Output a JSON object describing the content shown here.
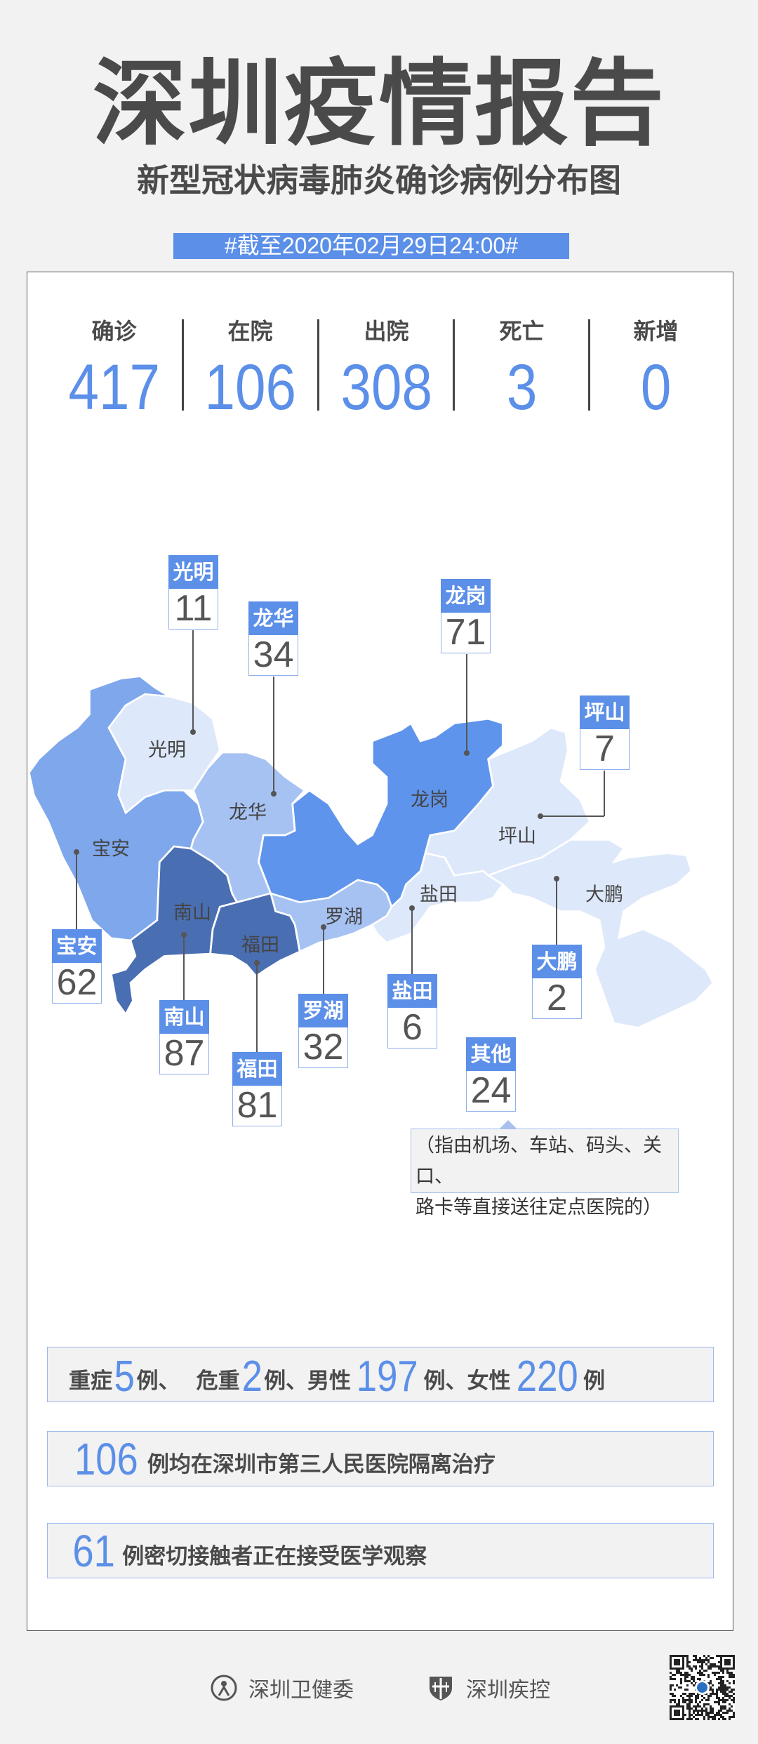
{
  "header": {
    "title": "深圳疫情报告",
    "subtitle": "新型冠状病毒肺炎确诊病例分布图",
    "date_banner": "#截至2020年02月29日24:00#"
  },
  "stats": [
    {
      "label": "确诊",
      "value": "417"
    },
    {
      "label": "在院",
      "value": "106"
    },
    {
      "label": "出院",
      "value": "308"
    },
    {
      "label": "死亡",
      "value": "3"
    },
    {
      "label": "新增",
      "value": "0"
    }
  ],
  "colors": {
    "accent": "#5b8fe8",
    "text": "#4d4d4d",
    "background": "#f2f2f2"
  },
  "districts": [
    {
      "name": "光明",
      "count": "11",
      "fill": "#dde8fa"
    },
    {
      "name": "龙华",
      "count": "34",
      "fill": "#a6c2f2"
    },
    {
      "name": "龙岗",
      "count": "71",
      "fill": "#5f94ec"
    },
    {
      "name": "坪山",
      "count": "7",
      "fill": "#dde8fa"
    },
    {
      "name": "宝安",
      "count": "62",
      "fill": "#7ea7ec"
    },
    {
      "name": "南山",
      "count": "87",
      "fill": "#4a6eb2"
    },
    {
      "name": "福田",
      "count": "81",
      "fill": "#4a6eb2"
    },
    {
      "name": "罗湖",
      "count": "32",
      "fill": "#a6c2f2"
    },
    {
      "name": "盐田",
      "count": "6",
      "fill": "#dde8fa"
    },
    {
      "name": "大鹏",
      "count": "2",
      "fill": "#dde8fa"
    }
  ],
  "other": {
    "name": "其他",
    "count": "24",
    "note_line1": "（指由机场、车站、码头、关口、",
    "note_line2": "路卡等直接送往定点医院的）"
  },
  "summary": {
    "line1": {
      "severe_label": "重症",
      "severe": "5",
      "sep1": "例、",
      "critical_label": "危重",
      "critical": "2",
      "male_label": "例、男性",
      "male": "197",
      "female_label": "例、女性",
      "female": "220",
      "unit": "例"
    },
    "line2": {
      "count": "106",
      "text": "例均在深圳市第三人民医院隔离治疗"
    },
    "line3": {
      "count": "61",
      "text": "例密切接触者正在接受医学观察"
    }
  },
  "footer": {
    "org1": "深圳卫健委",
    "org2": "深圳疾控"
  }
}
